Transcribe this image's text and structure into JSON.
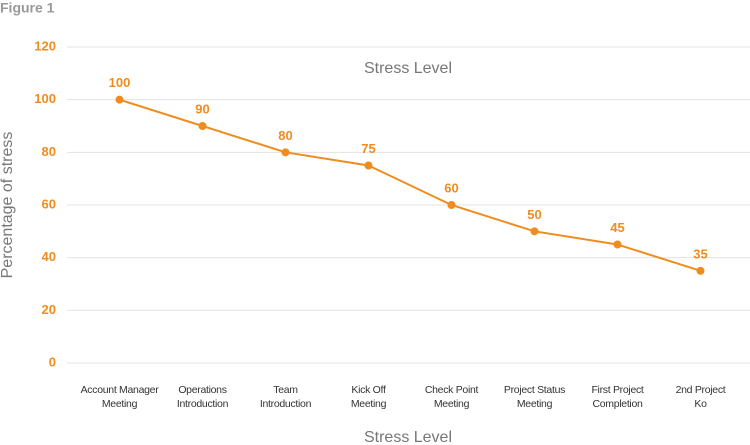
{
  "figure_label": "Figure 1",
  "chart_data": {
    "type": "line",
    "title": "Stress Level",
    "x_label": "Stress Level",
    "y_label": "Percentage of stress",
    "categories": [
      "Account Manager\nMeeting",
      "Operations\nIntroduction",
      "Team\nIntroduction",
      "Kick Off\nMeeting",
      "Check Point\nMeeting",
      "Project Status\nMeeting",
      "First Project\nCompletion",
      "2nd Project\nKo"
    ],
    "values": [
      100,
      90,
      80,
      75,
      60,
      50,
      45,
      35
    ],
    "color": "#f08c1e",
    "ylim": [
      0,
      120
    ],
    "yticks": [
      0,
      20,
      40,
      60,
      80,
      100,
      120
    ],
    "grid": true
  }
}
